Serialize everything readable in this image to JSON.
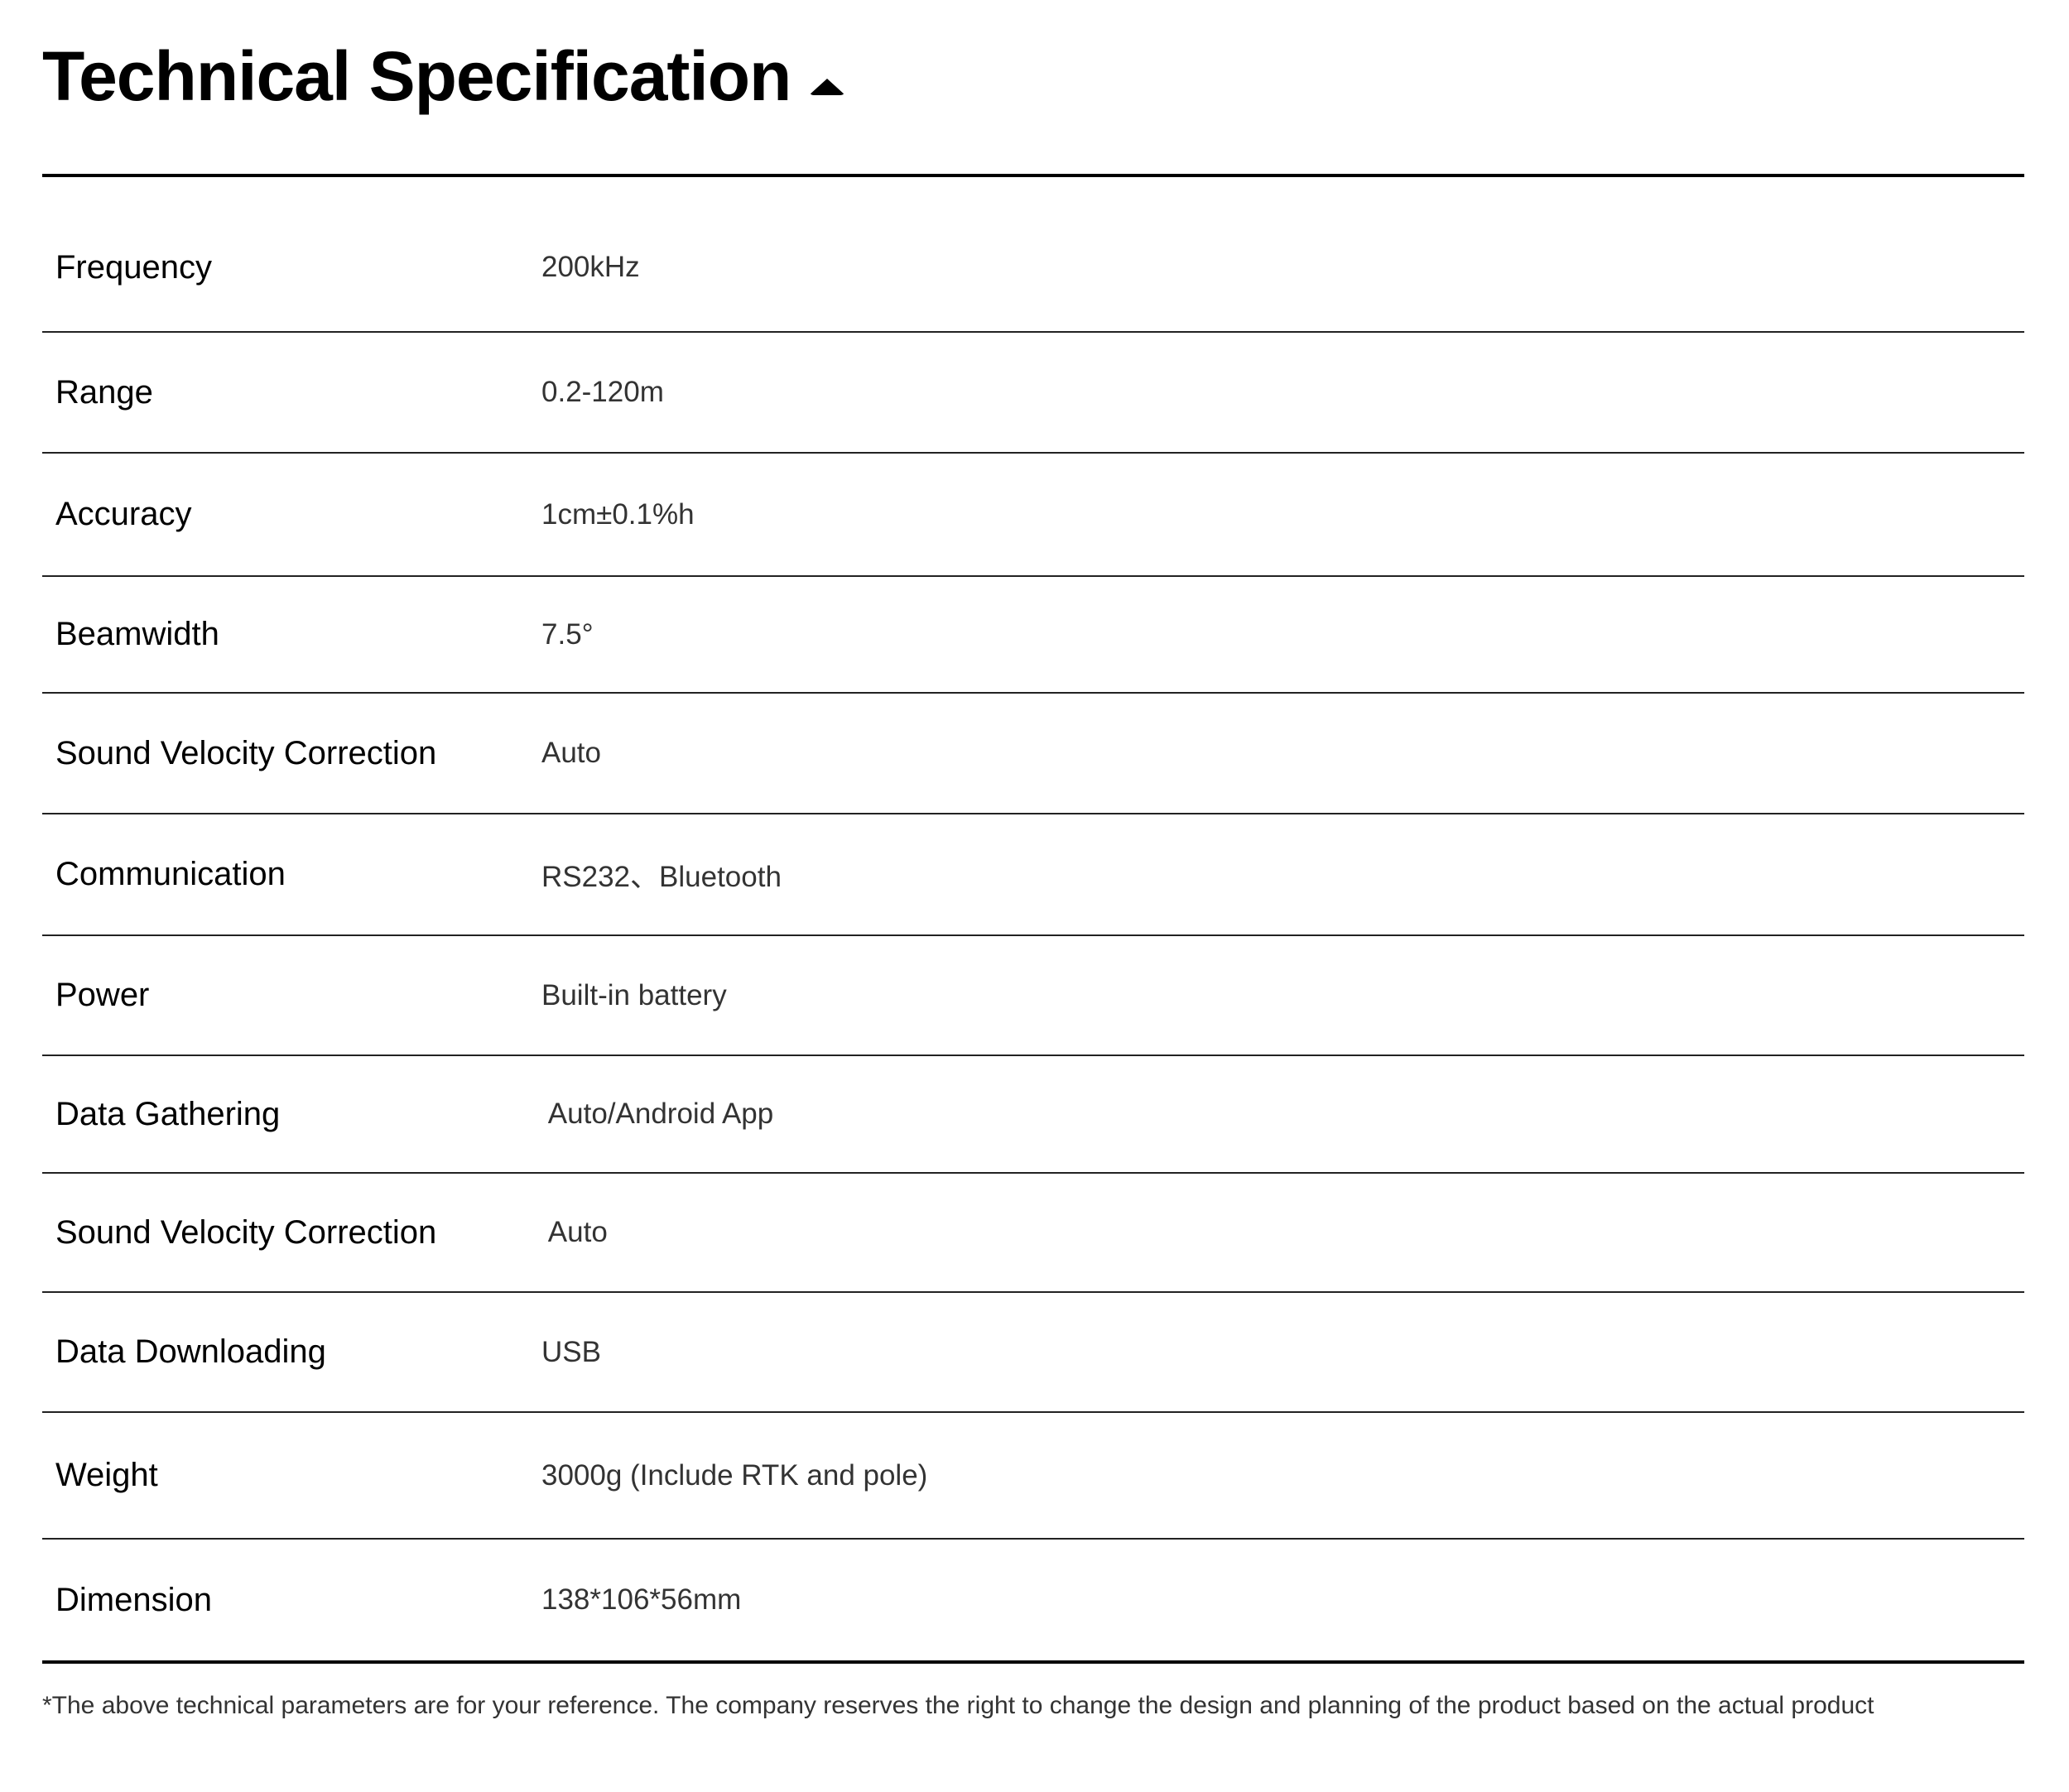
{
  "header": {
    "title": "Technical Specification",
    "toggle_icon": "caret-up-icon"
  },
  "specs": [
    {
      "label": "Frequency",
      "value": "200kHz"
    },
    {
      "label": "Range",
      "value": "0.2-120m"
    },
    {
      "label": "Accuracy",
      "value": "1cm±0.1%h"
    },
    {
      "label": "Beamwidth",
      "value": "7.5°"
    },
    {
      "label": "Sound Velocity Correction",
      "value": "Auto"
    },
    {
      "label": "Communication",
      "value": "RS232、Bluetooth"
    },
    {
      "label": "Power",
      "value": "Built-in battery"
    },
    {
      "label": "Data Gathering",
      "value": " Auto/Android App"
    },
    {
      "label": "Sound Velocity Correction",
      "value": " Auto"
    },
    {
      "label": "Data Downloading",
      "value": "USB"
    },
    {
      "label": "Weight",
      "value": "3000g (Include RTK and pole)"
    },
    {
      "label": "Dimension",
      "value": "138*106*56mm"
    }
  ],
  "footer": {
    "note": "*The above technical parameters are for your reference. The company reserves the right to change the design and planning of the product based on the actual product"
  }
}
